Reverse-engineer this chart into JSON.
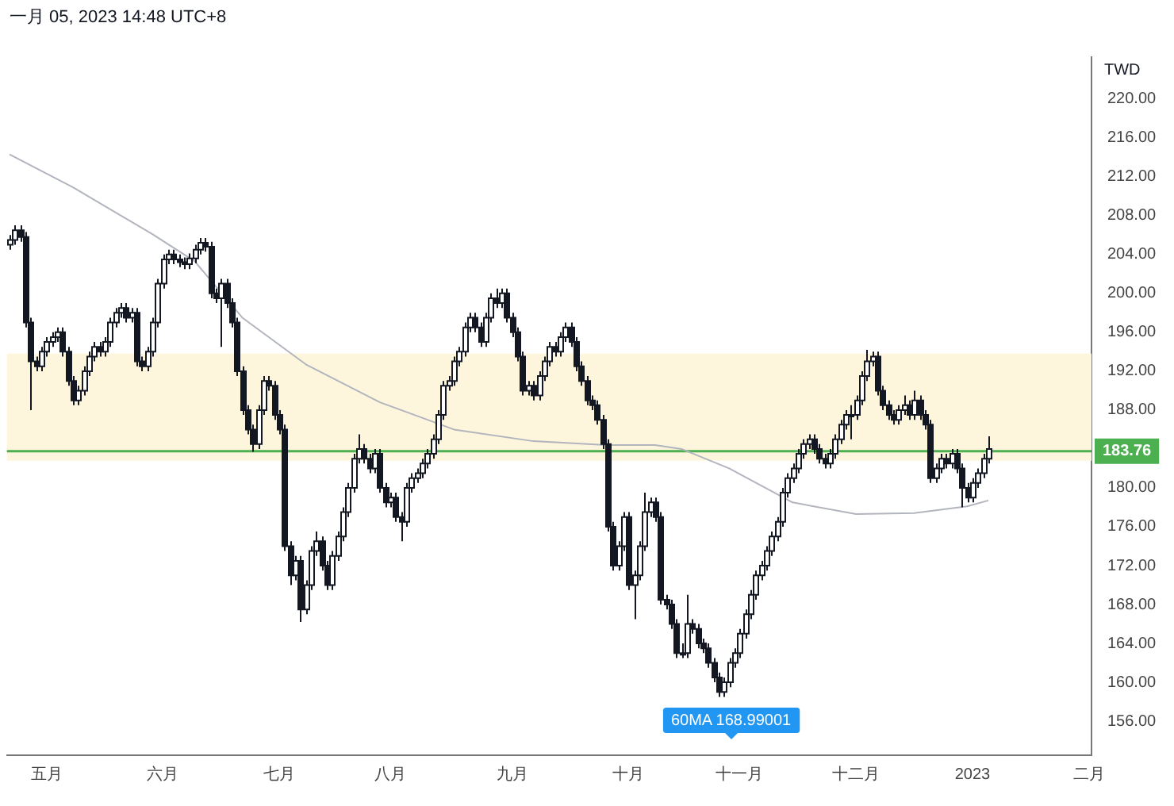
{
  "chart_data": {
    "type": "candlestick",
    "title": "一月 05, 2023 14:48 UTC+8",
    "ylabel": "TWD",
    "categories": [
      null,
      null,
      null,
      null,
      null,
      null,
      null,
      "五月",
      null,
      null,
      null,
      null,
      null,
      null,
      null,
      null,
      null,
      null,
      null,
      null,
      null,
      null,
      null,
      null,
      null,
      null,
      null,
      null,
      null,
      "六月",
      null,
      null,
      null,
      null,
      null,
      null,
      null,
      null,
      null,
      null,
      null,
      null,
      null,
      null,
      null,
      null,
      null,
      null,
      null,
      null,
      null,
      "七月",
      null,
      null,
      null,
      null,
      null,
      null,
      null,
      null,
      null,
      null,
      null,
      null,
      null,
      null,
      null,
      null,
      null,
      null,
      null,
      null,
      "八月",
      null,
      null,
      null,
      null,
      null,
      null,
      null,
      null,
      null,
      null,
      null,
      null,
      null,
      null,
      null,
      null,
      null,
      null,
      null,
      null,
      null,
      null,
      "九月",
      null,
      null,
      null,
      null,
      null,
      null,
      null,
      null,
      null,
      null,
      null,
      null,
      null,
      null,
      null,
      null,
      null,
      null,
      null,
      null,
      null,
      "十月",
      null,
      null,
      null,
      null,
      null,
      null,
      null,
      null,
      null,
      null,
      null,
      null,
      null,
      null,
      null,
      null,
      null,
      null,
      null,
      null,
      "十一月",
      null,
      null,
      null,
      null,
      null,
      null,
      null,
      null,
      null,
      null,
      null,
      null,
      null,
      null,
      null,
      null,
      null,
      null,
      null,
      null,
      null,
      "十二月",
      null,
      null,
      null,
      null,
      null,
      null,
      null,
      null,
      null,
      null,
      null,
      null,
      null,
      null,
      null,
      null,
      null,
      null,
      null,
      null,
      null,
      "2023",
      null,
      null,
      null,
      null,
      null,
      null,
      null,
      null,
      null,
      null,
      null,
      null,
      null,
      null,
      null,
      null,
      null,
      null,
      null,
      null,
      null,
      "二月"
    ],
    "ohlc": [
      [
        205,
        206,
        204.5,
        205.5
      ],
      [
        205.5,
        207,
        205,
        206.5
      ],
      [
        206.5,
        207,
        205.3,
        205.8
      ],
      [
        205.8,
        206.3,
        196.5,
        197
      ],
      [
        197,
        197.5,
        188,
        193
      ],
      [
        193,
        193.5,
        192,
        192.5
      ],
      [
        192.5,
        194.5,
        192,
        194
      ],
      [
        194,
        195.5,
        193.5,
        195
      ],
      [
        195,
        196,
        194.5,
        195.5
      ],
      [
        195.5,
        196.5,
        195,
        196
      ],
      [
        196,
        196.5,
        193.5,
        194
      ],
      [
        194,
        194.5,
        190.5,
        191
      ],
      [
        191,
        191.5,
        188.5,
        189
      ],
      [
        189,
        190.5,
        188.5,
        190
      ],
      [
        190,
        192.5,
        189.5,
        192
      ],
      [
        192,
        194,
        191.5,
        193.5
      ],
      [
        193.5,
        195,
        193,
        194.5
      ],
      [
        194.5,
        195,
        193.5,
        194
      ],
      [
        194,
        195.5,
        193.5,
        195
      ],
      [
        195,
        197.5,
        194.5,
        197
      ],
      [
        197,
        198.5,
        196.5,
        198
      ],
      [
        198,
        199,
        197.5,
        198.5
      ],
      [
        198.5,
        199,
        197,
        197.5
      ],
      [
        197.5,
        198.5,
        197,
        198
      ],
      [
        198,
        198.5,
        192.5,
        193
      ],
      [
        193,
        193.5,
        192,
        192.5
      ],
      [
        192.5,
        194.5,
        192,
        194
      ],
      [
        194,
        197.5,
        193.5,
        197
      ],
      [
        197,
        201.5,
        196.5,
        201
      ],
      [
        201,
        204,
        200.5,
        203.5
      ],
      [
        203.5,
        204.5,
        203,
        204
      ],
      [
        204,
        204.5,
        203,
        203.5
      ],
      [
        203.5,
        204,
        202.7,
        203.2
      ],
      [
        203.2,
        203.7,
        202.5,
        203
      ],
      [
        203,
        204.1,
        202.5,
        203.6
      ],
      [
        203.6,
        205,
        203.1,
        204.5
      ],
      [
        204.5,
        205.7,
        204,
        205.2
      ],
      [
        205.2,
        205.7,
        204.3,
        204.8
      ],
      [
        204.8,
        205.3,
        199.5,
        200
      ],
      [
        200,
        200.5,
        199,
        199.5
      ],
      [
        199.5,
        201.5,
        194.5,
        201
      ],
      [
        201,
        201.5,
        198.5,
        199
      ],
      [
        199,
        199.5,
        196.5,
        197
      ],
      [
        197,
        197.5,
        191.5,
        192
      ],
      [
        192,
        192.5,
        187.5,
        188
      ],
      [
        188,
        188.5,
        185.5,
        186
      ],
      [
        186,
        186.5,
        183.7,
        184.5
      ],
      [
        184.5,
        188.5,
        184,
        188
      ],
      [
        188,
        191.5,
        187.5,
        191
      ],
      [
        191,
        191.5,
        190,
        190.5
      ],
      [
        190.5,
        191,
        187,
        187.5
      ],
      [
        187.5,
        188,
        185.5,
        186
      ],
      [
        186,
        186.5,
        173.5,
        174
      ],
      [
        174,
        174.5,
        170,
        171
      ],
      [
        171,
        173,
        170.5,
        172.5
      ],
      [
        172.5,
        173,
        166.2,
        167.5
      ],
      [
        167.5,
        170.5,
        167,
        170
      ],
      [
        170,
        174,
        169.5,
        173.5
      ],
      [
        173.5,
        175.5,
        173,
        174.5
      ],
      [
        174.5,
        175,
        171.5,
        172
      ],
      [
        172,
        172.5,
        169.5,
        170
      ],
      [
        170,
        173.5,
        169.5,
        173
      ],
      [
        173,
        175.5,
        172.5,
        175
      ],
      [
        175,
        178,
        174.5,
        177.5
      ],
      [
        177.5,
        180.5,
        177,
        180
      ],
      [
        180,
        183.5,
        179.5,
        183
      ],
      [
        183,
        185.5,
        182.5,
        184
      ],
      [
        184,
        184.5,
        182.5,
        183
      ],
      [
        183,
        183.5,
        181.5,
        182
      ],
      [
        182,
        184,
        181.5,
        183.5
      ],
      [
        183.5,
        184,
        179.5,
        180
      ],
      [
        180,
        180.5,
        178,
        178.5
      ],
      [
        178.5,
        179.5,
        178,
        179
      ],
      [
        179,
        179.5,
        176.5,
        177
      ],
      [
        177,
        177.5,
        174.5,
        176.5
      ],
      [
        176.5,
        180.5,
        176,
        180
      ],
      [
        180,
        181.5,
        179.5,
        181
      ],
      [
        181,
        182,
        180.5,
        181.5
      ],
      [
        181.5,
        183,
        181,
        182.5
      ],
      [
        182.5,
        184,
        182,
        183.5
      ],
      [
        183.5,
        185.5,
        183,
        185
      ],
      [
        185,
        188,
        184.5,
        187.5
      ],
      [
        187.5,
        191,
        187,
        190.5
      ],
      [
        190.5,
        191.5,
        190,
        191
      ],
      [
        191,
        193.5,
        190.5,
        193
      ],
      [
        193,
        194.5,
        192.5,
        194
      ],
      [
        194,
        197,
        193.5,
        196.5
      ],
      [
        196.5,
        198,
        196,
        197.5
      ],
      [
        197.5,
        198,
        196,
        196.5
      ],
      [
        196.5,
        197,
        194.5,
        195
      ],
      [
        195,
        198,
        194.5,
        197.5
      ],
      [
        197.5,
        200,
        197,
        199.5
      ],
      [
        199.5,
        200.5,
        198.5,
        199
      ],
      [
        199,
        200.5,
        198.5,
        200
      ],
      [
        200,
        200.5,
        197,
        197.5
      ],
      [
        197.5,
        198,
        195.5,
        196
      ],
      [
        196,
        196.5,
        193,
        193.5
      ],
      [
        193.5,
        194,
        189.5,
        190
      ],
      [
        190,
        191,
        189.5,
        190.5
      ],
      [
        190.5,
        191,
        189,
        189.5
      ],
      [
        189.5,
        192,
        189,
        191.5
      ],
      [
        191.5,
        193.5,
        191,
        193
      ],
      [
        193,
        195,
        192.5,
        194.5
      ],
      [
        194.5,
        195,
        193.5,
        194
      ],
      [
        194,
        196,
        193.5,
        195.5
      ],
      [
        195.5,
        197,
        195,
        196.5
      ],
      [
        196.5,
        197,
        194.5,
        195
      ],
      [
        195,
        195.5,
        192,
        192.5
      ],
      [
        192.5,
        193,
        190.5,
        191
      ],
      [
        191,
        191.5,
        188.5,
        189
      ],
      [
        189,
        189.5,
        188,
        188.5
      ],
      [
        188.5,
        189,
        186.5,
        187
      ],
      [
        187,
        187.5,
        184,
        184.5
      ],
      [
        184.5,
        185,
        175.5,
        176
      ],
      [
        176,
        176.5,
        171.5,
        172
      ],
      [
        172,
        174.5,
        171.5,
        174
      ],
      [
        174,
        177.5,
        173.5,
        177
      ],
      [
        177,
        177.5,
        169.5,
        170
      ],
      [
        170,
        171.5,
        166.5,
        171
      ],
      [
        171,
        174.5,
        170.5,
        174
      ],
      [
        174,
        179.5,
        173.5,
        177.5
      ],
      [
        177.5,
        179,
        177,
        178.5
      ],
      [
        178.5,
        179,
        176.5,
        177
      ],
      [
        177,
        177.5,
        168,
        168.5
      ],
      [
        168.5,
        169,
        167.5,
        168
      ],
      [
        168,
        168.5,
        165.5,
        166
      ],
      [
        166,
        166.5,
        162.5,
        163
      ],
      [
        163,
        164,
        162.5,
        163
      ],
      [
        163,
        169,
        162.5,
        166
      ],
      [
        166,
        166.5,
        165,
        165.5
      ],
      [
        165.5,
        166,
        163.5,
        164
      ],
      [
        164,
        164.5,
        163,
        163.5
      ],
      [
        163.5,
        164,
        161.5,
        162
      ],
      [
        162,
        162.5,
        160,
        160.5
      ],
      [
        160.5,
        161,
        158.5,
        159
      ],
      [
        159,
        160.5,
        158.5,
        160
      ],
      [
        160,
        162.5,
        159.5,
        162
      ],
      [
        162,
        163.5,
        161.5,
        163
      ],
      [
        163,
        165.5,
        162.5,
        165
      ],
      [
        165,
        167.5,
        164.5,
        167
      ],
      [
        167,
        169.5,
        166.5,
        169
      ],
      [
        169,
        171.5,
        168.5,
        171
      ],
      [
        171,
        172.5,
        170.5,
        172
      ],
      [
        172,
        174,
        171.5,
        173.5
      ],
      [
        173.5,
        175.5,
        173,
        175
      ],
      [
        175,
        177,
        174.5,
        176.5
      ],
      [
        176.5,
        180,
        176,
        179.5
      ],
      [
        179.5,
        181.5,
        179,
        181
      ],
      [
        181,
        182.5,
        180.5,
        182
      ],
      [
        182,
        184,
        181.5,
        183.5
      ],
      [
        183.5,
        185,
        183,
        184.5
      ],
      [
        184.5,
        185.5,
        184,
        185
      ],
      [
        185,
        185.5,
        183.5,
        184
      ],
      [
        184,
        184.5,
        182.5,
        183
      ],
      [
        183,
        183.5,
        182,
        182.5
      ],
      [
        182.5,
        184,
        182,
        183.5
      ],
      [
        183.5,
        185.5,
        183,
        185
      ],
      [
        185,
        187,
        184.5,
        186.5
      ],
      [
        186.5,
        188,
        186,
        187.5
      ],
      [
        187.5,
        188.5,
        185,
        187.5
      ],
      [
        187.5,
        189.5,
        187,
        189
      ],
      [
        189,
        192,
        188.5,
        191.5
      ],
      [
        191.5,
        194.2,
        191,
        193
      ],
      [
        193,
        194,
        192.5,
        193.5
      ],
      [
        193.5,
        194,
        189.5,
        190
      ],
      [
        190,
        190.5,
        188,
        188.5
      ],
      [
        188.5,
        189,
        187,
        187.5
      ],
      [
        187.5,
        188,
        186.5,
        187
      ],
      [
        187,
        188.5,
        186.5,
        188
      ],
      [
        188,
        189.5,
        187.5,
        188.5
      ],
      [
        188.5,
        189,
        187,
        187.5
      ],
      [
        187.5,
        190,
        187,
        189
      ],
      [
        189,
        189.5,
        187,
        187.5
      ],
      [
        187.5,
        188,
        186,
        186.5
      ],
      [
        186.5,
        187,
        180.5,
        181
      ],
      [
        181,
        182.5,
        180.5,
        182
      ],
      [
        182,
        183.5,
        181.5,
        183
      ],
      [
        183,
        183.5,
        182,
        182.5
      ],
      [
        182.5,
        184,
        182,
        183.5
      ],
      [
        183.5,
        184,
        181.5,
        182
      ],
      [
        182,
        182.5,
        178,
        180
      ],
      [
        180,
        180.5,
        178.5,
        179
      ],
      [
        179,
        181,
        178.5,
        180.5
      ],
      [
        180.5,
        182,
        180,
        181.5
      ],
      [
        181.5,
        183.5,
        181,
        183
      ],
      [
        183,
        185.3,
        182.5,
        184
      ],
      null,
      null,
      null,
      null,
      null,
      null,
      null,
      null,
      null,
      null,
      null,
      null,
      null,
      null,
      null,
      null,
      null,
      null,
      null
    ],
    "series": [
      {
        "type": "line",
        "color": "#b2b5be",
        "values": [
          214.3,
          null,
          null,
          null,
          null,
          null,
          null,
          null,
          null,
          null,
          null,
          null,
          210.9,
          null,
          null,
          null,
          null,
          null,
          null,
          null,
          null,
          null,
          null,
          null,
          null,
          null,
          null,
          206.1,
          null,
          null,
          null,
          null,
          null,
          null,
          null,
          203.3,
          null,
          null,
          null,
          null,
          null,
          null,
          null,
          null,
          197.5,
          null,
          null,
          null,
          null,
          null,
          null,
          null,
          null,
          null,
          null,
          null,
          192.7,
          null,
          null,
          null,
          null,
          null,
          null,
          null,
          null,
          null,
          null,
          null,
          null,
          null,
          188.8,
          null,
          null,
          null,
          null,
          null,
          null,
          null,
          null,
          null,
          null,
          null,
          null,
          null,
          186,
          null,
          null,
          null,
          null,
          null,
          null,
          null,
          null,
          null,
          null,
          null,
          null,
          null,
          null,
          184.8,
          null,
          null,
          null,
          null,
          null,
          null,
          null,
          null,
          null,
          null,
          null,
          null,
          null,
          184.4,
          null,
          null,
          null,
          null,
          null,
          null,
          null,
          null,
          184.4,
          null,
          null,
          null,
          null,
          184,
          null,
          null,
          null,
          null,
          null,
          null,
          null,
          null,
          182,
          null,
          null,
          null,
          null,
          null,
          null,
          null,
          null,
          null,
          null,
          null,
          178.5,
          null,
          null,
          null,
          null,
          null,
          null,
          null,
          null,
          null,
          null,
          null,
          177.3,
          null,
          null,
          null,
          null,
          null,
          null,
          null,
          null,
          null,
          null,
          177.4,
          null,
          null,
          null,
          null,
          null,
          null,
          null,
          null,
          null,
          178.1,
          null,
          null,
          null,
          178.7,
          null,
          null,
          null,
          null,
          null,
          null,
          null,
          null,
          null,
          null,
          null,
          null,
          null,
          null,
          null,
          null,
          null,
          null,
          null
        ]
      }
    ],
    "ylim": [
      152.5,
      224.3
    ],
    "yticks": [
      {
        "value": 156,
        "label": "156.00"
      },
      {
        "value": 160,
        "label": "160.00"
      },
      {
        "value": 164,
        "label": "164.00"
      },
      {
        "value": 168,
        "label": "168.00"
      },
      {
        "value": 172,
        "label": "172.00"
      },
      {
        "value": 176,
        "label": "176.00"
      },
      {
        "value": 180,
        "label": "180.00"
      },
      {
        "value": 188,
        "label": "188.00"
      },
      {
        "value": 192,
        "label": "192.00"
      },
      {
        "value": 196,
        "label": "196.00"
      },
      {
        "value": 200,
        "label": "200.00"
      },
      {
        "value": 204,
        "label": "204.00"
      },
      {
        "value": 208,
        "label": "208.00"
      },
      {
        "value": 212,
        "label": "212.00"
      },
      {
        "value": 216,
        "label": "216.00"
      },
      {
        "value": 220,
        "label": "220.00"
      }
    ],
    "ref_lines": [
      {
        "axis": "y",
        "value": 183.76,
        "label": "183.76",
        "color": "#4caf50"
      }
    ],
    "bands": [
      {
        "axis": "y",
        "from": 182.8,
        "to": 193.8,
        "color": "#fdf5dc"
      }
    ],
    "annotations": [
      "60MA 168.99001"
    ],
    "grid": false,
    "legend": false
  }
}
